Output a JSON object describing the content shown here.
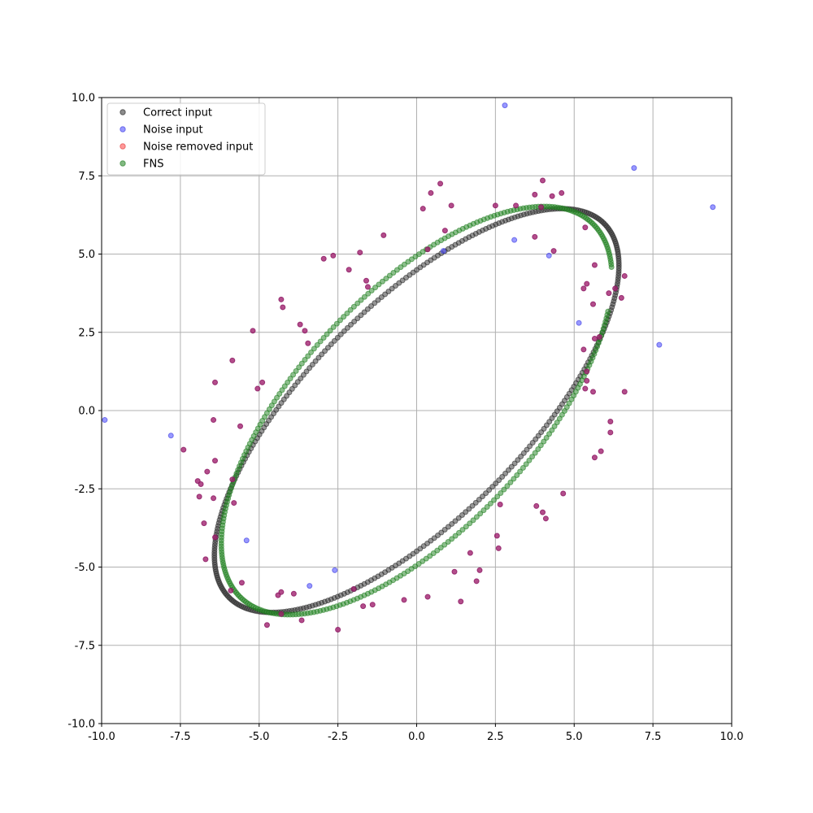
{
  "chart_data": {
    "type": "scatter",
    "xlim": [
      -10,
      10
    ],
    "ylim": [
      -10,
      10
    ],
    "xticks": [
      "-10.0",
      "-7.5",
      "-5.0",
      "-2.5",
      "0.0",
      "2.5",
      "5.0",
      "7.5",
      "10.0"
    ],
    "yticks": [
      "-10.0",
      "-7.5",
      "-5.0",
      "-2.5",
      "0.0",
      "2.5",
      "5.0",
      "7.5",
      "10.0"
    ],
    "grid": true,
    "legend_position": "top-left",
    "legend": [
      "Correct input",
      "Noise input",
      "Noise removed input",
      "FNS"
    ],
    "colors": {
      "correct": "#404040",
      "noise": "#5555ff",
      "noise_removed": "#ff5555",
      "fns": "#2e8b2e",
      "noise_overlap": "#a0206e"
    },
    "series": [
      {
        "name": "Correct input",
        "kind": "ellipse",
        "center": [
          0,
          0
        ],
        "x_amplitude": 6.42,
        "y_amplitude": 6.45,
        "phase_shift_rad": 0.8,
        "n_points": 360
      },
      {
        "name": "Noise input",
        "points": [
          [
            -9.9,
            -0.3
          ],
          [
            -7.8,
            -0.8
          ],
          [
            2.8,
            9.75
          ],
          [
            6.9,
            7.75
          ],
          [
            9.4,
            6.5
          ],
          [
            0.85,
            5.1
          ],
          [
            3.1,
            5.45
          ],
          [
            4.2,
            4.95
          ],
          [
            5.15,
            2.8
          ],
          [
            7.7,
            2.1
          ],
          [
            -5.4,
            -4.15
          ],
          [
            -2.6,
            -5.1
          ],
          [
            -3.4,
            -5.6
          ]
        ]
      },
      {
        "name": "Noise removed input",
        "points": [
          [
            0.2,
            6.45
          ],
          [
            0.45,
            6.95
          ],
          [
            0.75,
            7.25
          ],
          [
            1.1,
            6.55
          ],
          [
            2.5,
            6.55
          ],
          [
            3.15,
            6.55
          ],
          [
            3.75,
            6.9
          ],
          [
            4.0,
            7.35
          ],
          [
            4.3,
            6.85
          ],
          [
            4.6,
            6.95
          ],
          [
            3.95,
            6.5
          ],
          [
            3.75,
            5.55
          ],
          [
            4.35,
            5.1
          ],
          [
            5.35,
            5.85
          ],
          [
            0.35,
            5.15
          ],
          [
            0.9,
            5.75
          ],
          [
            -1.05,
            5.6
          ],
          [
            -1.8,
            5.05
          ],
          [
            -2.15,
            4.5
          ],
          [
            -2.65,
            4.95
          ],
          [
            -2.95,
            4.85
          ],
          [
            -1.6,
            4.15
          ],
          [
            -1.55,
            3.95
          ],
          [
            -4.3,
            3.55
          ],
          [
            -4.25,
            3.3
          ],
          [
            -3.7,
            2.75
          ],
          [
            -3.55,
            2.55
          ],
          [
            -3.45,
            2.15
          ],
          [
            -5.2,
            2.55
          ],
          [
            -5.85,
            1.6
          ],
          [
            -4.9,
            0.9
          ],
          [
            -5.05,
            0.7
          ],
          [
            -6.4,
            0.9
          ],
          [
            -6.45,
            -0.3
          ],
          [
            -5.6,
            -0.5
          ],
          [
            -7.4,
            -1.25
          ],
          [
            -6.4,
            -1.6
          ],
          [
            -6.65,
            -1.95
          ],
          [
            -6.95,
            -2.25
          ],
          [
            -6.85,
            -2.35
          ],
          [
            -5.85,
            -2.2
          ],
          [
            -6.9,
            -2.75
          ],
          [
            -5.8,
            -2.95
          ],
          [
            -6.45,
            -2.8
          ],
          [
            -6.75,
            -3.6
          ],
          [
            -6.4,
            -4.05
          ],
          [
            -6.7,
            -4.75
          ],
          [
            -5.9,
            -5.75
          ],
          [
            -5.55,
            -5.5
          ],
          [
            -4.4,
            -5.9
          ],
          [
            -4.3,
            -5.8
          ],
          [
            -3.65,
            -6.7
          ],
          [
            -4.3,
            -6.5
          ],
          [
            -4.75,
            -6.85
          ],
          [
            -3.9,
            -5.85
          ],
          [
            -2.0,
            -5.7
          ],
          [
            -2.5,
            -7.0
          ],
          [
            -1.7,
            -6.25
          ],
          [
            -1.4,
            -6.2
          ],
          [
            -0.4,
            -6.05
          ],
          [
            0.35,
            -5.95
          ],
          [
            1.4,
            -6.1
          ],
          [
            1.9,
            -5.45
          ],
          [
            1.2,
            -5.15
          ],
          [
            1.7,
            -4.55
          ],
          [
            2.0,
            -5.1
          ],
          [
            2.55,
            -4.0
          ],
          [
            2.6,
            -4.4
          ],
          [
            2.65,
            -3.0
          ],
          [
            3.8,
            -3.05
          ],
          [
            4.0,
            -3.25
          ],
          [
            4.1,
            -3.45
          ],
          [
            4.65,
            -2.65
          ],
          [
            5.65,
            -1.5
          ],
          [
            5.85,
            -1.3
          ],
          [
            6.15,
            -0.7
          ],
          [
            6.15,
            -0.35
          ],
          [
            6.6,
            0.6
          ],
          [
            5.6,
            0.6
          ],
          [
            5.4,
            0.95
          ],
          [
            5.4,
            1.25
          ],
          [
            5.3,
            1.95
          ],
          [
            5.3,
            3.9
          ],
          [
            5.4,
            4.05
          ],
          [
            5.65,
            4.65
          ],
          [
            5.6,
            3.4
          ],
          [
            5.65,
            2.3
          ],
          [
            5.8,
            2.35
          ],
          [
            6.1,
            3.75
          ],
          [
            6.5,
            3.6
          ],
          [
            6.6,
            4.3
          ],
          [
            6.3,
            3.9
          ],
          [
            5.35,
            0.7
          ]
        ]
      },
      {
        "name": "FNS",
        "kind": "ellipse_arc",
        "center": [
          0,
          0
        ],
        "x_amplitude": 6.2,
        "y_amplitude": 6.52,
        "phase_shift_rad": 0.71,
        "t_start_rad": 0.07,
        "t_end_rad": 6.08,
        "n_points": 320
      }
    ]
  }
}
